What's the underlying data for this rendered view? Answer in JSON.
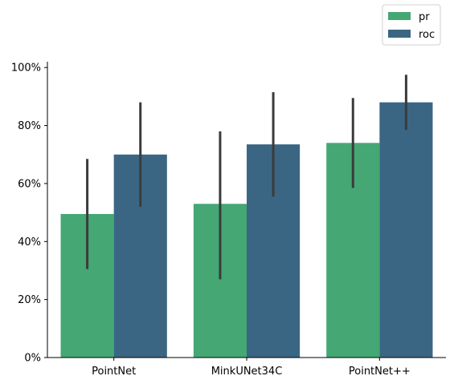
{
  "chart_data": {
    "type": "bar",
    "categories": [
      "PointNet",
      "MinkUNet34C",
      "PointNet++"
    ],
    "series": [
      {
        "name": "pr",
        "color": "#44a774",
        "values": [
          0.495,
          0.53,
          0.74
        ],
        "error_low": [
          0.305,
          0.27,
          0.585
        ],
        "error_high": [
          0.685,
          0.78,
          0.895
        ]
      },
      {
        "name": "roc",
        "color": "#3a6684",
        "values": [
          0.7,
          0.735,
          0.88
        ],
        "error_low": [
          0.52,
          0.555,
          0.785
        ],
        "error_high": [
          0.88,
          0.915,
          0.975
        ]
      }
    ],
    "ylim": [
      0,
      1.02
    ],
    "yticks": [
      0,
      0.2,
      0.4,
      0.6,
      0.8,
      1.0
    ],
    "ytick_labels": [
      "0%",
      "20%",
      "40%",
      "60%",
      "80%",
      "100%"
    ],
    "grid": false,
    "legend_position": "top-right",
    "error_bar_color": "#3b3b3b"
  }
}
